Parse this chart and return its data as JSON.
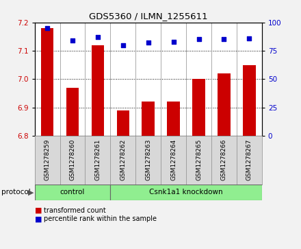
{
  "title": "GDS5360 / ILMN_1255611",
  "samples": [
    "GSM1278259",
    "GSM1278260",
    "GSM1278261",
    "GSM1278262",
    "GSM1278263",
    "GSM1278264",
    "GSM1278265",
    "GSM1278266",
    "GSM1278267"
  ],
  "bar_values": [
    7.18,
    6.97,
    7.12,
    6.89,
    6.92,
    6.92,
    7.0,
    7.02,
    7.05
  ],
  "scatter_values": [
    95,
    84,
    87,
    80,
    82,
    83,
    85,
    85,
    86
  ],
  "bar_color": "#cc0000",
  "scatter_color": "#0000cc",
  "ylim_left": [
    6.8,
    7.2
  ],
  "ylim_right": [
    0,
    100
  ],
  "yticks_left": [
    6.8,
    6.9,
    7.0,
    7.1,
    7.2
  ],
  "yticks_right": [
    0,
    25,
    50,
    75,
    100
  ],
  "control_count": 3,
  "knockdown_count": 6,
  "group_labels": [
    "control",
    "Csnk1a1 knockdown"
  ],
  "group_color": "#90ee90",
  "protocol_label": "protocol",
  "legend_items": [
    {
      "label": "transformed count",
      "color": "#cc0000"
    },
    {
      "label": "percentile rank within the sample",
      "color": "#0000cc"
    }
  ],
  "background_color": "#f2f2f2",
  "plot_bg_color": "#ffffff",
  "bar_width": 0.5,
  "cell_bg_color": "#d8d8d8"
}
